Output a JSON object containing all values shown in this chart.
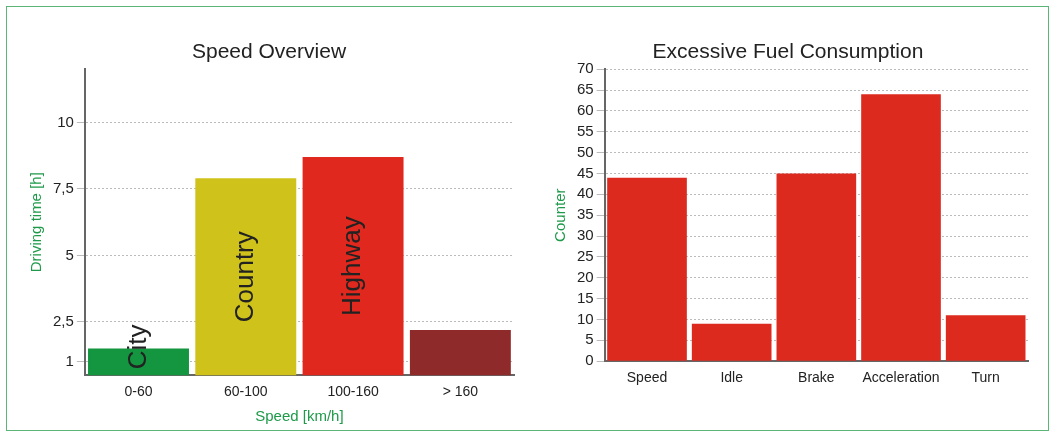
{
  "chart_data": [
    {
      "type": "bar",
      "title": "Speed Overview",
      "xlabel": "Speed [km/h]",
      "ylabel": "Driving time [h]",
      "categories": [
        "0-60",
        "60-100",
        "100-160",
        "> 160"
      ],
      "series": [
        {
          "values": [
            1.5,
            7.9,
            8.7,
            2.2
          ],
          "colors": [
            "#13963f",
            "#cfc21a",
            "#e0281e",
            "#8e2a2a"
          ]
        }
      ],
      "ylim": [
        0.5,
        12
      ],
      "yticks": [
        {
          "value": 1,
          "label": "1"
        },
        {
          "value": 2.5,
          "label": "2,5"
        },
        {
          "value": 5,
          "label": "5"
        },
        {
          "value": 7.5,
          "label": "7,5"
        },
        {
          "value": 10,
          "label": "10"
        }
      ],
      "annotations": [
        "City",
        "Country",
        "Highway"
      ],
      "grid": "y",
      "legend": false
    },
    {
      "type": "bar",
      "title": "Excessive Fuel Consumption",
      "ylabel": "Counter",
      "categories": [
        "Speed",
        "Idle",
        "Brake",
        "Acceleration",
        "Turn"
      ],
      "series": [
        {
          "color": "#dc2a1e",
          "values": [
            44,
            9,
            45,
            64,
            11
          ]
        }
      ],
      "ylim": [
        0,
        70
      ],
      "yticks": [
        0,
        5,
        10,
        15,
        20,
        25,
        30,
        35,
        40,
        45,
        50,
        55,
        60,
        65,
        70
      ],
      "grid": "y",
      "legend": false
    }
  ]
}
